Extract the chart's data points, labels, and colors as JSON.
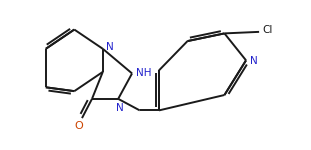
{
  "bg_color": "#ffffff",
  "line_color": "#1a1a1a",
  "label_color_N": "#2222cc",
  "label_color_O": "#cc4400",
  "label_color_Cl": "#1a1a1a",
  "line_width": 1.4,
  "font_size": 7.5,
  "xlim": [
    0,
    3.11
  ],
  "ylim": [
    0,
    1.5
  ]
}
